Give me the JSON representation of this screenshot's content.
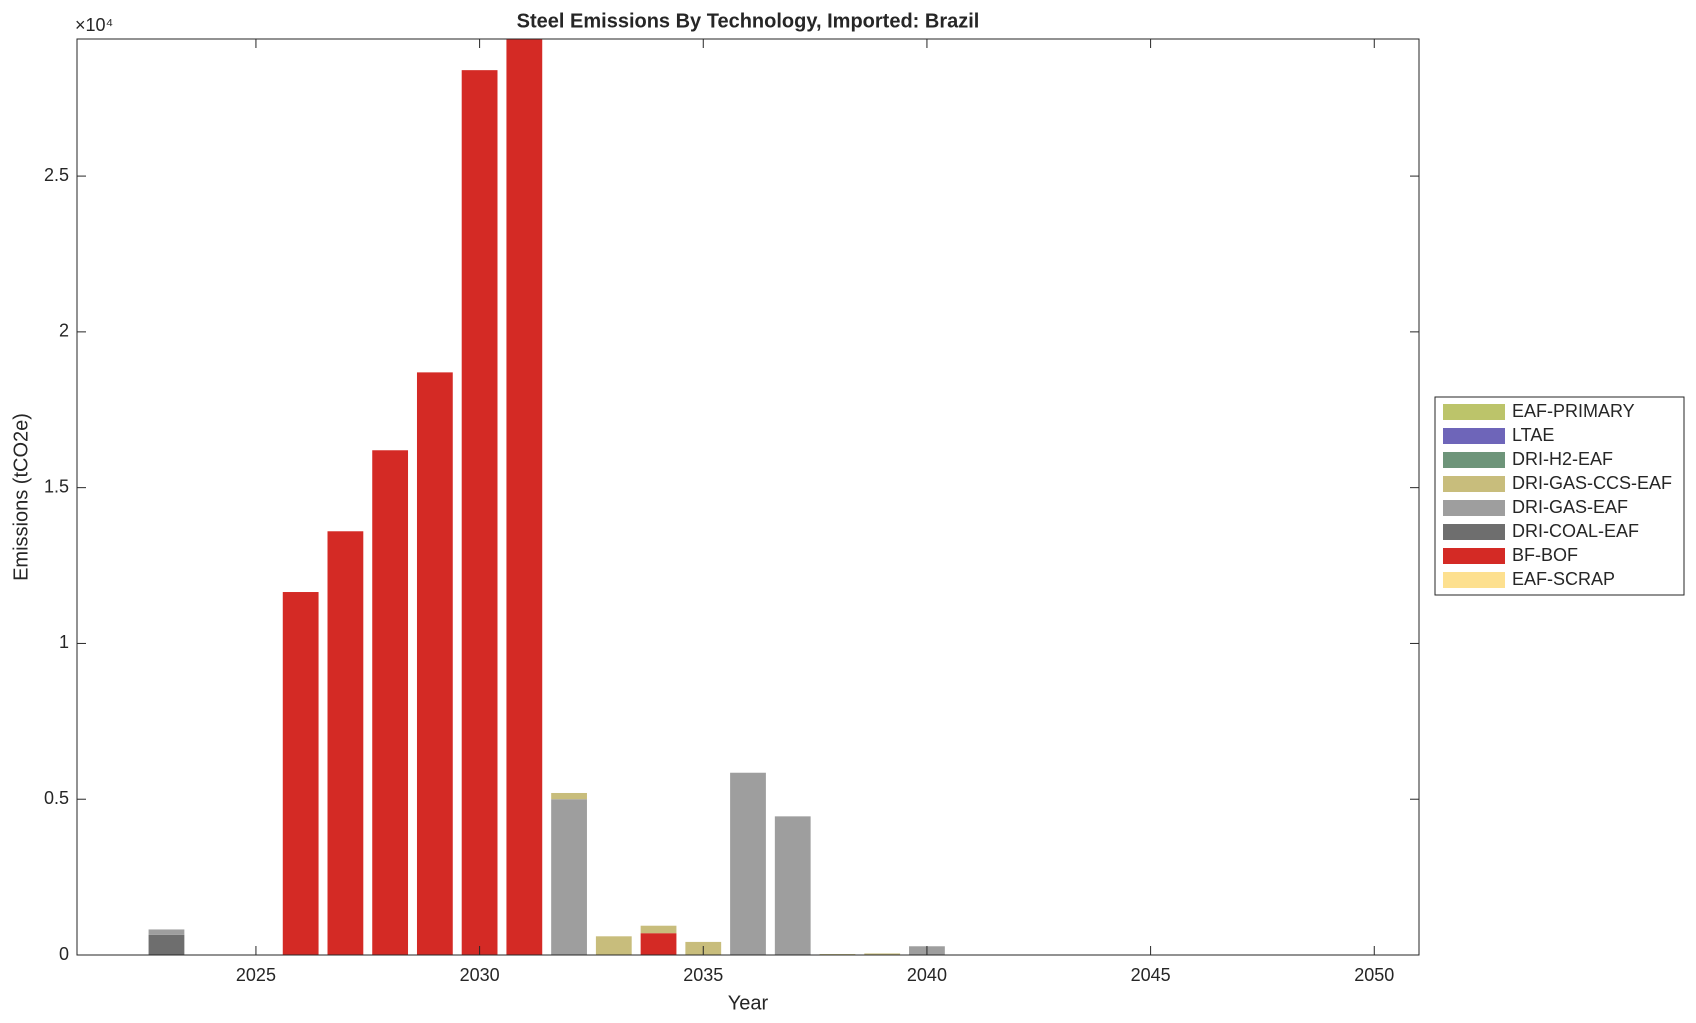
{
  "chart_data": {
    "type": "stacked-bar",
    "title": "Steel Emissions By Technology, Imported: Brazil",
    "x_label": "Year",
    "y_label": "Emissions (tCO2e)",
    "y_exponent": "×10⁴",
    "x": [
      2023,
      2024,
      2025,
      2026,
      2027,
      2028,
      2029,
      2030,
      2031,
      2032,
      2033,
      2034,
      2035,
      2036,
      2037,
      2038,
      2039,
      2040,
      2041,
      2042,
      2043,
      2044,
      2045,
      2046,
      2047,
      2048,
      2049,
      2050
    ],
    "xlim": [
      2021,
      2051
    ],
    "xticks": [
      2025,
      2030,
      2035,
      2040,
      2045,
      2050
    ],
    "ylim": [
      0,
      29400
    ],
    "yticks": [
      0,
      {
        "value": 5000,
        "label": "0.5"
      },
      {
        "value": 10000,
        "label": "1"
      },
      {
        "value": 15000,
        "label": "1.5"
      },
      {
        "value": 20000,
        "label": "2"
      },
      {
        "value": 25000,
        "label": "2.5"
      }
    ],
    "series": [
      {
        "name": "EAF-SCRAP",
        "color": "#fde08f",
        "values": [
          0,
          0,
          0,
          0,
          0,
          0,
          0,
          0,
          0,
          0,
          0,
          0,
          0,
          0,
          0,
          0,
          0,
          0,
          0,
          0,
          0,
          0,
          0,
          0,
          0,
          0,
          0,
          0
        ]
      },
      {
        "name": "BF-BOF",
        "color": "#d42a25",
        "values": [
          0,
          0,
          0,
          11650,
          13600,
          16200,
          18700,
          28400,
          29600,
          0,
          0,
          700,
          0,
          0,
          0,
          0,
          0,
          0,
          0,
          0,
          0,
          0,
          0,
          0,
          0,
          0,
          0,
          0
        ]
      },
      {
        "name": "DRI-COAL-EAF",
        "color": "#6e6e6e",
        "values": [
          650,
          0,
          0,
          0,
          0,
          0,
          0,
          0,
          0,
          0,
          0,
          0,
          0,
          0,
          0,
          0,
          0,
          0,
          0,
          0,
          0,
          0,
          0,
          0,
          0,
          0,
          0,
          0
        ]
      },
      {
        "name": "DRI-GAS-EAF",
        "color": "#9e9e9e",
        "values": [
          170,
          0,
          0,
          0,
          0,
          0,
          0,
          0,
          0,
          5000,
          0,
          0,
          0,
          5850,
          4450,
          0,
          0,
          280,
          0,
          0,
          0,
          0,
          0,
          0,
          0,
          0,
          0,
          0
        ]
      },
      {
        "name": "DRI-GAS-CCS-EAF",
        "color": "#c8bd7c",
        "values": [
          0,
          0,
          0,
          0,
          0,
          0,
          0,
          0,
          0,
          200,
          600,
          240,
          420,
          0,
          0,
          30,
          50,
          0,
          0,
          0,
          0,
          0,
          0,
          0,
          0,
          0,
          0,
          0
        ]
      },
      {
        "name": "DRI-H2-EAF",
        "color": "#6e957a",
        "values": [
          0,
          0,
          0,
          0,
          0,
          0,
          0,
          0,
          0,
          0,
          0,
          0,
          0,
          0,
          0,
          0,
          0,
          0,
          0,
          0,
          0,
          0,
          0,
          0,
          0,
          0,
          0,
          0
        ]
      },
      {
        "name": "LTAE",
        "color": "#6e65b9",
        "values": [
          0,
          0,
          0,
          0,
          0,
          0,
          0,
          0,
          0,
          0,
          0,
          0,
          0,
          0,
          0,
          0,
          0,
          0,
          0,
          0,
          0,
          0,
          0,
          0,
          0,
          0,
          0,
          0
        ]
      },
      {
        "name": "EAF-PRIMARY",
        "color": "#bcc46a",
        "values": [
          0,
          0,
          0,
          0,
          0,
          0,
          0,
          0,
          0,
          0,
          0,
          0,
          0,
          0,
          0,
          0,
          0,
          0,
          0,
          0,
          0,
          0,
          0,
          0,
          0,
          0,
          0,
          0
        ]
      }
    ]
  }
}
